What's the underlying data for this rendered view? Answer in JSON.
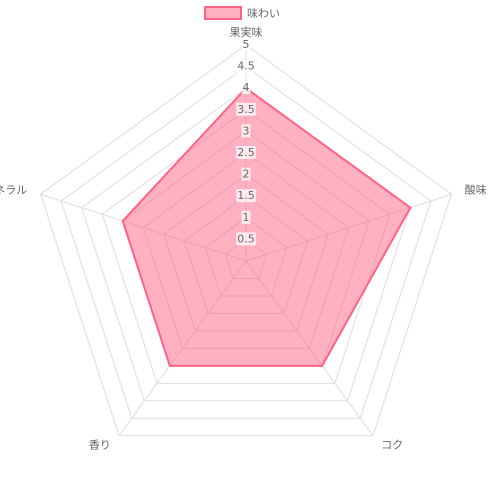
{
  "chart_data": {
    "type": "radar",
    "categories": [
      "果実味",
      "酸味",
      "コク",
      "香り",
      "ミネラル"
    ],
    "series": [
      {
        "name": "味わい",
        "color": "#ff6384",
        "values": [
          4,
          4,
          3,
          3,
          3
        ]
      }
    ],
    "rlim": [
      0,
      5
    ],
    "rticks": [
      0.5,
      1,
      1.5,
      2,
      2.5,
      3,
      3.5,
      4,
      4.5,
      5
    ],
    "grid": true,
    "legend": "top"
  }
}
